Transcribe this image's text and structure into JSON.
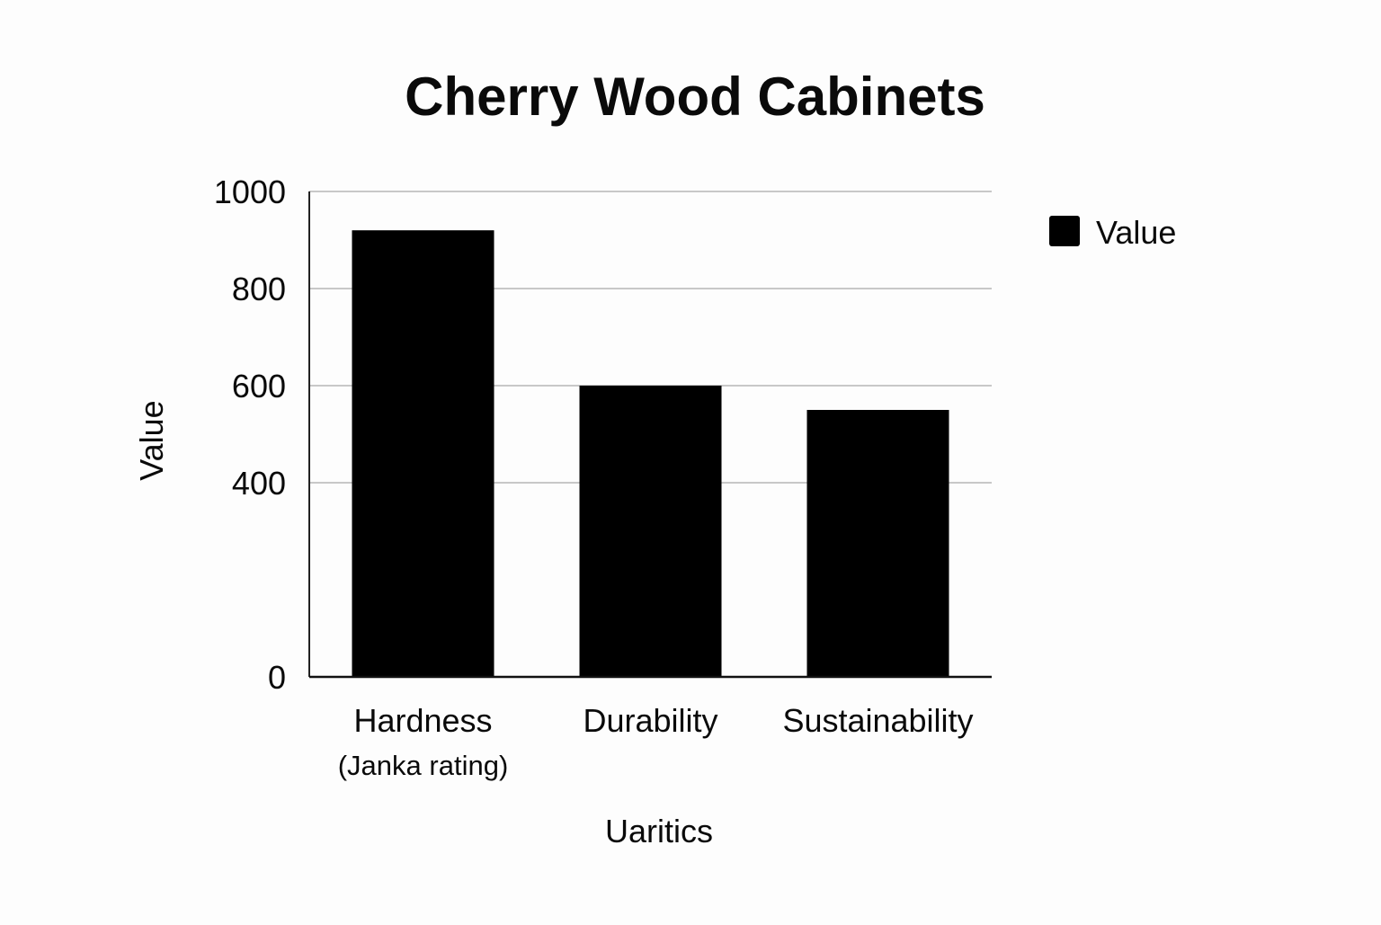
{
  "chart_data": {
    "type": "bar",
    "title": "Cherry Wood Cabinets",
    "xlabel": "Uaritics",
    "ylabel": "Value",
    "categories": [
      {
        "label": "Hardness",
        "sublabel": "(Janka rating)"
      },
      {
        "label": "Durability",
        "sublabel": ""
      },
      {
        "label": "Sustainability",
        "sublabel": ""
      }
    ],
    "series": [
      {
        "name": "Value",
        "color": "#000000",
        "values": [
          920,
          600,
          550
        ]
      }
    ],
    "ylim": [
      0,
      1000
    ],
    "yticks": [
      0,
      400,
      600,
      800,
      1000
    ],
    "grid": true,
    "gridlines": [
      400,
      600,
      800,
      1000
    ],
    "legend_position": "top-right"
  }
}
